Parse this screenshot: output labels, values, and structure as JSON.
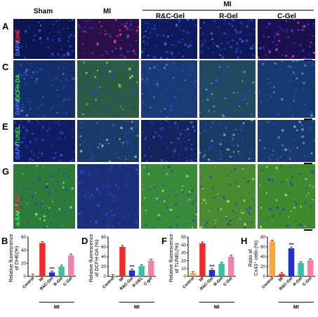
{
  "headers": {
    "sham": "Sham",
    "mi": "MI",
    "mi_group": "MI",
    "rc_gel": "R&C-Gel",
    "r_gel": "R-Gel",
    "c_gel": "C-Gel"
  },
  "panels": {
    "A": "A",
    "C": "C",
    "E": "E",
    "G": "G",
    "B": "B",
    "D": "D",
    "F": "F",
    "H": "H"
  },
  "rows": [
    {
      "stain_a": "DAPI",
      "sep": "/",
      "stain_b": "DHE",
      "color_b": "#ff3030"
    },
    {
      "stain_a": "DAPI",
      "sep": "/",
      "stain_b": "DCFH-DA",
      "color_b": "#30ff30"
    },
    {
      "stain_a": "DAPI",
      "sep": "/",
      "stain_b": "TUNEL",
      "color_b": "#30ff30"
    },
    {
      "stain_a": "α-SA",
      "sep": "/",
      "stain_b": "Cx-43",
      "color_b": "#ff3030"
    }
  ],
  "colors": {
    "control": "#f5a742",
    "mi": "#ee2a2a",
    "rc": "#1f2fd6",
    "r": "#3bbfa5",
    "c": "#f77fa8"
  },
  "chart_data": [
    {
      "type": "bar",
      "panel": "B",
      "ylabel": "Relative fluorescence of DHE(%)",
      "categories": [
        "Control",
        "MI",
        "R&C-Gel",
        "R-Gel",
        "C-Gel"
      ],
      "values": [
        1,
        51,
        6,
        15,
        32
      ],
      "ylim": [
        0,
        60
      ],
      "yticks": [
        "0",
        "20",
        "40",
        "60"
      ],
      "group_label": "MI",
      "annotation": "***"
    },
    {
      "type": "bar",
      "panel": "D",
      "ylabel": "Relative fluorescence of DCFH-DA (%)",
      "categories": [
        "Control",
        "MI",
        "R&C-Gel",
        "R-GEL",
        "C-gel"
      ],
      "values": [
        0.5,
        60,
        12,
        21,
        32
      ],
      "ylim": [
        0,
        80
      ],
      "yticks": [
        "0",
        "20",
        "40",
        "60",
        "80"
      ],
      "group_label": "MI",
      "annotation": "***"
    },
    {
      "type": "bar",
      "panel": "F",
      "ylabel": "Relative fluorescence of TUNEL(%)",
      "categories": [
        "Control",
        "MI",
        "R&C-Gel",
        "R-Gel",
        "C-Gel"
      ],
      "values": [
        4,
        42,
        8,
        16,
        25
      ],
      "ylim": [
        0,
        50
      ],
      "yticks": [
        "0",
        "10",
        "20",
        "30",
        "40",
        "50"
      ],
      "group_label": "MI",
      "annotation": "***"
    },
    {
      "type": "bar",
      "panel": "H",
      "ylabel": "Ratio of Cx43⁺ cells (%)",
      "categories": [
        "Control",
        "MI",
        "R&C-Gel",
        "R-Gel",
        "C-Gel"
      ],
      "values": [
        71,
        5,
        57,
        27,
        33
      ],
      "ylim": [
        0,
        80
      ],
      "yticks": [
        "0",
        "20",
        "40",
        "60",
        "80"
      ],
      "group_label": "MI",
      "annotation": "***"
    }
  ]
}
